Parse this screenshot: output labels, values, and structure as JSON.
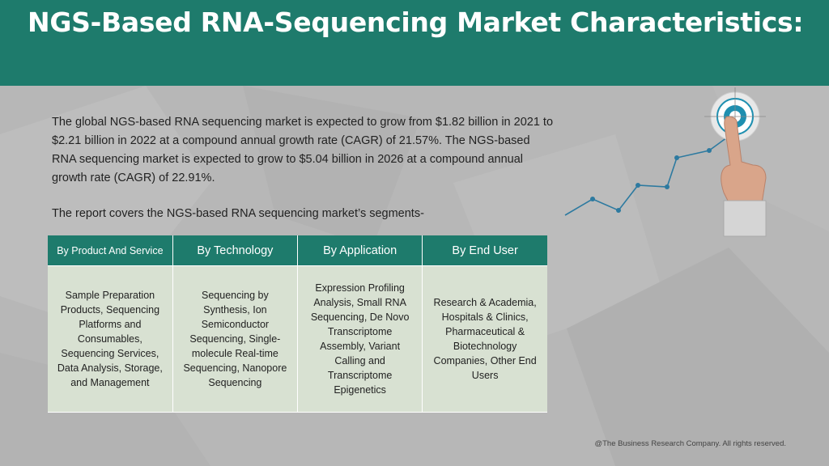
{
  "header": {
    "title": "NGS-Based RNA-Sequencing Market Characteristics:"
  },
  "intro": {
    "text": "The global NGS-based RNA sequencing market is expected to grow from $1.82 billion in 2021 to $2.21 billion in 2022 at a compound annual growth rate (CAGR) of 21.57%. The NGS-based RNA sequencing market is expected to grow to $5.04 billion in 2026 at a compound annual growth rate (CAGR) of 22.91%."
  },
  "segments_note": "The report covers the NGS-based RNA sequencing market’s segments-",
  "table": {
    "headers": [
      "By Product And Service",
      "By Technology",
      "By Application",
      "By End User"
    ],
    "cells": [
      "Sample Preparation Products, Sequencing Platforms and Consumables, Sequencing Services, Data Analysis, Storage, and Management",
      "Sequencing by Synthesis, Ion Semiconductor Sequencing, Single-molecule Real-time Sequencing, Nanopore Sequencing",
      "Expression Profiling Analysis, Small RNA Sequencing, De Novo Transcriptome Assembly, Variant Calling and Transcriptome Epigenetics",
      "Research & Academia, Hospitals & Clinics, Pharmaceutical & Biotechnology Companies, Other End Users"
    ]
  },
  "illustration": {
    "icon": "growth-chart-target-finger-icon",
    "line_color": "#2d7aa0",
    "target_color": "#1e8fb0"
  },
  "footer": {
    "copyright": "@The Business Research Company. All rights reserved."
  },
  "colors": {
    "header": "#1e7b6c",
    "background": "#b7b7b7",
    "cell": "#d8e1d2"
  }
}
